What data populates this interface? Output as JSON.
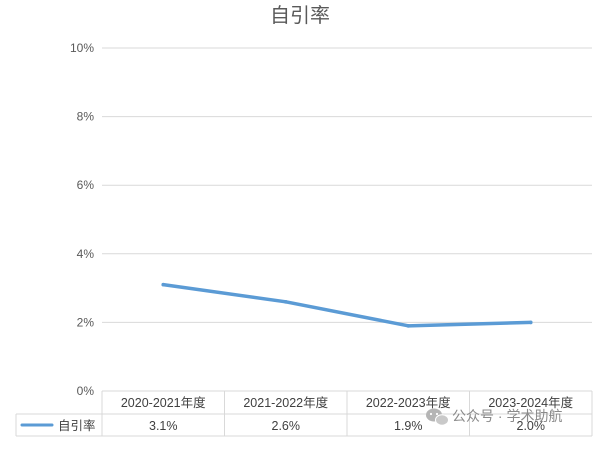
{
  "chart_data": {
    "type": "line",
    "title": "自引率",
    "categories": [
      "2020-2021年度",
      "2021-2022年度",
      "2022-2023年度",
      "2023-2024年度"
    ],
    "series": [
      {
        "name": "自引率",
        "values": [
          3.1,
          2.6,
          1.9,
          2.0
        ],
        "labels": [
          "3.1%",
          "2.6%",
          "1.9%",
          "2.0%"
        ]
      }
    ],
    "y_ticks": [
      "0%",
      "2%",
      "4%",
      "6%",
      "8%",
      "10%"
    ],
    "ylim": [
      0,
      10
    ],
    "grid": true,
    "legend": "data-table-left",
    "series_color": "#5B9BD5"
  },
  "watermark": {
    "text": "公众号 · 学术助航",
    "icon": "wechat-icon"
  }
}
